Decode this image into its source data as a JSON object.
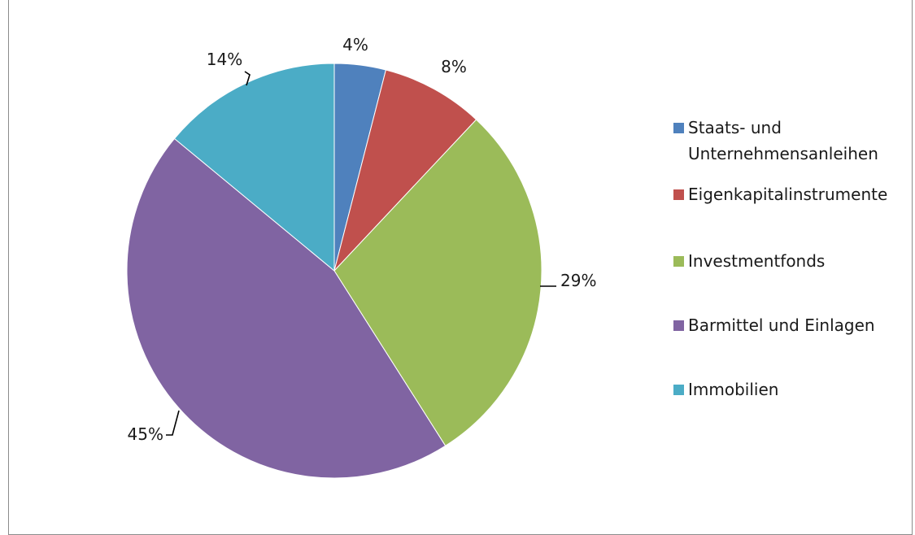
{
  "chart_data": {
    "type": "pie",
    "title": "",
    "categories": [
      "Staats- und Unternehmensanleihen",
      "Eigenkapitalinstrumente",
      "Investmentfonds",
      "Barmittel und Einlagen",
      "Immobilien"
    ],
    "legend_lines": [
      [
        "Staats- und",
        "Unternehmensanleihen"
      ],
      [
        "Eigenkapitalinstrumente"
      ],
      [
        "Investmentfonds"
      ],
      [
        "Barmittel und Einlagen"
      ],
      [
        "Immobilien"
      ]
    ],
    "values": [
      4,
      8,
      29,
      45,
      14
    ],
    "data_labels": [
      "4%",
      "8%",
      "29%",
      "45%",
      "14%"
    ],
    "colors": [
      "#4f81bd",
      "#c0504d",
      "#9bbb59",
      "#8064a2",
      "#4bacc6"
    ],
    "legend_position": "right",
    "start_angle_deg": 0,
    "direction": "clockwise"
  }
}
